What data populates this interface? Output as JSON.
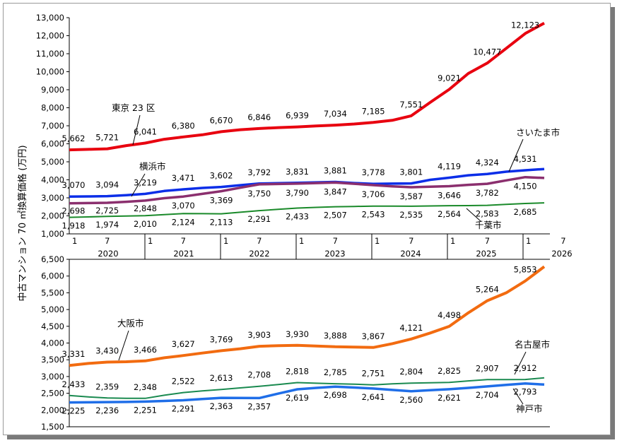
{
  "chart_data": [
    {
      "type": "line",
      "ylabel": "中古マンション 70 ㎡換算価格 (万円)",
      "ylim": [
        1000,
        13000
      ],
      "yticks": [
        "1,000",
        "2,000",
        "3,000",
        "4,000",
        "5,000",
        "6,000",
        "7,000",
        "8,000",
        "9,000",
        "10,000",
        "11,000",
        "12,000",
        "13,000"
      ],
      "x_axis": {
        "month_ticks": [
          "1",
          "7",
          "1",
          "7",
          "1",
          "7",
          "1",
          "7",
          "1",
          "7",
          "1",
          "7",
          "1",
          "7"
        ],
        "years": [
          "2020",
          "2021",
          "2022",
          "2023",
          "2024",
          "2025",
          "2026"
        ]
      },
      "series": [
        {
          "name": "東京 23 区",
          "color": "#e8000f",
          "labels": [
            "5,662",
            "5,721",
            "6,041",
            "6,380",
            "6,670",
            "6,846",
            "6,939",
            "7,034",
            "7,185",
            "7,551",
            "9,021",
            "10,477",
            "12,123"
          ],
          "points": [
            [
              0,
              5662
            ],
            [
              3,
              5690
            ],
            [
              6,
              5721
            ],
            [
              9,
              5900
            ],
            [
              12,
              6041
            ],
            [
              15,
              6250
            ],
            [
              18,
              6380
            ],
            [
              21,
              6500
            ],
            [
              24,
              6670
            ],
            [
              27,
              6780
            ],
            [
              30,
              6846
            ],
            [
              33,
              6900
            ],
            [
              36,
              6939
            ],
            [
              39,
              6990
            ],
            [
              42,
              7034
            ],
            [
              45,
              7100
            ],
            [
              48,
              7185
            ],
            [
              51,
              7300
            ],
            [
              54,
              7551
            ],
            [
              57,
              8300
            ],
            [
              60,
              9021
            ],
            [
              63,
              9900
            ],
            [
              66,
              10477
            ],
            [
              69,
              11300
            ],
            [
              72,
              12123
            ],
            [
              75,
              12700
            ]
          ]
        },
        {
          "name": "さいたま市",
          "color": "#0b2ee8",
          "labels": [
            "3,070",
            "3,094",
            "3,219",
            "3,471",
            "3,602",
            "3,792",
            "3,831",
            "3,881",
            "3,778",
            "3,801",
            "4,119",
            "4,324",
            "4,531"
          ],
          "points": [
            [
              0,
              3070
            ],
            [
              3,
              3080
            ],
            [
              6,
              3094
            ],
            [
              9,
              3150
            ],
            [
              12,
              3219
            ],
            [
              15,
              3380
            ],
            [
              18,
              3471
            ],
            [
              21,
              3550
            ],
            [
              24,
              3602
            ],
            [
              27,
              3700
            ],
            [
              30,
              3792
            ],
            [
              33,
              3810
            ],
            [
              36,
              3831
            ],
            [
              39,
              3860
            ],
            [
              42,
              3881
            ],
            [
              45,
              3820
            ],
            [
              48,
              3778
            ],
            [
              51,
              3790
            ],
            [
              54,
              3801
            ],
            [
              57,
              4000
            ],
            [
              60,
              4119
            ],
            [
              63,
              4250
            ],
            [
              66,
              4324
            ],
            [
              69,
              4450
            ],
            [
              72,
              4531
            ],
            [
              75,
              4600
            ]
          ]
        },
        {
          "name": "横浜市",
          "color": "#8b2f6e",
          "labels": [
            "2,698",
            "2,725",
            "2,848",
            "3,070",
            "3,369",
            "3,750",
            "3,790",
            "3,847",
            "3,706",
            "3,587",
            "3,646",
            "3,782",
            "4,150"
          ],
          "points": [
            [
              0,
              2698
            ],
            [
              3,
              2710
            ],
            [
              6,
              2725
            ],
            [
              9,
              2780
            ],
            [
              12,
              2848
            ],
            [
              15,
              2980
            ],
            [
              18,
              3070
            ],
            [
              21,
              3220
            ],
            [
              24,
              3369
            ],
            [
              27,
              3560
            ],
            [
              30,
              3750
            ],
            [
              33,
              3770
            ],
            [
              36,
              3790
            ],
            [
              39,
              3820
            ],
            [
              42,
              3847
            ],
            [
              45,
              3780
            ],
            [
              48,
              3706
            ],
            [
              51,
              3640
            ],
            [
              54,
              3587
            ],
            [
              57,
              3620
            ],
            [
              60,
              3646
            ],
            [
              63,
              3720
            ],
            [
              66,
              3782
            ],
            [
              69,
              3970
            ],
            [
              72,
              4150
            ],
            [
              75,
              4100
            ]
          ]
        },
        {
          "name": "千葉市",
          "color": "#1a8a2a",
          "labels": [
            "1,918",
            "1,974",
            "2,010",
            "2,124",
            "2,113",
            "2,291",
            "2,433",
            "2,507",
            "2,543",
            "2,535",
            "2,564",
            "2,583",
            "2,685"
          ],
          "points": [
            [
              0,
              1918
            ],
            [
              3,
              1940
            ],
            [
              6,
              1974
            ],
            [
              9,
              1990
            ],
            [
              12,
              2010
            ],
            [
              15,
              2070
            ],
            [
              18,
              2124
            ],
            [
              21,
              2120
            ],
            [
              24,
              2113
            ],
            [
              27,
              2200
            ],
            [
              30,
              2291
            ],
            [
              33,
              2360
            ],
            [
              36,
              2433
            ],
            [
              39,
              2470
            ],
            [
              42,
              2507
            ],
            [
              45,
              2520
            ],
            [
              48,
              2543
            ],
            [
              51,
              2540
            ],
            [
              54,
              2535
            ],
            [
              57,
              2550
            ],
            [
              60,
              2564
            ],
            [
              63,
              2570
            ],
            [
              66,
              2583
            ],
            [
              69,
              2640
            ],
            [
              72,
              2685
            ],
            [
              75,
              2720
            ]
          ]
        }
      ]
    },
    {
      "type": "line",
      "ylim": [
        1500,
        6500
      ],
      "yticks": [
        "1,500",
        "2,000",
        "2,500",
        "3,000",
        "3,500",
        "4,000",
        "4,500",
        "5,000",
        "5,500",
        "6,000",
        "6,500"
      ],
      "series": [
        {
          "name": "大阪市",
          "color": "#f26b10",
          "labels": [
            "3,331",
            "3,430",
            "3,466",
            "3,627",
            "3,769",
            "3,903",
            "3,930",
            "3,888",
            "3,867",
            "4,121",
            "4,498",
            "5,264",
            "5,853"
          ],
          "points": [
            [
              0,
              3331
            ],
            [
              3,
              3390
            ],
            [
              6,
              3430
            ],
            [
              9,
              3440
            ],
            [
              12,
              3466
            ],
            [
              15,
              3560
            ],
            [
              18,
              3627
            ],
            [
              21,
              3700
            ],
            [
              24,
              3769
            ],
            [
              27,
              3830
            ],
            [
              30,
              3903
            ],
            [
              33,
              3920
            ],
            [
              36,
              3930
            ],
            [
              39,
              3910
            ],
            [
              42,
              3888
            ],
            [
              45,
              3880
            ],
            [
              48,
              3867
            ],
            [
              51,
              3980
            ],
            [
              54,
              4121
            ],
            [
              57,
              4300
            ],
            [
              60,
              4498
            ],
            [
              63,
              4900
            ],
            [
              66,
              5264
            ],
            [
              69,
              5500
            ],
            [
              72,
              5853
            ],
            [
              75,
              6280
            ]
          ]
        },
        {
          "name": "名古屋市",
          "color": "#1a8a50",
          "labels": [
            "2,433",
            "2,359",
            "2,348",
            "2,522",
            "2,613",
            "2,708",
            "2,818",
            "2,785",
            "2,751",
            "2,804",
            "2,825",
            "2,907",
            "2,912"
          ],
          "points": [
            [
              0,
              2433
            ],
            [
              3,
              2390
            ],
            [
              6,
              2359
            ],
            [
              9,
              2350
            ],
            [
              12,
              2348
            ],
            [
              15,
              2440
            ],
            [
              18,
              2522
            ],
            [
              21,
              2570
            ],
            [
              24,
              2613
            ],
            [
              27,
              2660
            ],
            [
              30,
              2708
            ],
            [
              33,
              2760
            ],
            [
              36,
              2818
            ],
            [
              39,
              2800
            ],
            [
              42,
              2785
            ],
            [
              45,
              2770
            ],
            [
              48,
              2751
            ],
            [
              51,
              2780
            ],
            [
              54,
              2804
            ],
            [
              57,
              2815
            ],
            [
              60,
              2825
            ],
            [
              63,
              2870
            ],
            [
              66,
              2907
            ],
            [
              69,
              2910
            ],
            [
              72,
              2912
            ],
            [
              75,
              2960
            ]
          ]
        },
        {
          "name": "神戸市",
          "color": "#1f6ee8",
          "labels": [
            "2,225",
            "2,236",
            "2,251",
            "2,291",
            "2,363",
            "2,357",
            "2,619",
            "2,698",
            "2,641",
            "2,560",
            "2,621",
            "2,704",
            "2,793"
          ],
          "points": [
            [
              0,
              2225
            ],
            [
              3,
              2230
            ],
            [
              6,
              2236
            ],
            [
              9,
              2240
            ],
            [
              12,
              2251
            ],
            [
              15,
              2270
            ],
            [
              18,
              2291
            ],
            [
              21,
              2330
            ],
            [
              24,
              2363
            ],
            [
              27,
              2360
            ],
            [
              30,
              2357
            ],
            [
              33,
              2490
            ],
            [
              36,
              2619
            ],
            [
              39,
              2660
            ],
            [
              42,
              2698
            ],
            [
              45,
              2670
            ],
            [
              48,
              2641
            ],
            [
              51,
              2600
            ],
            [
              54,
              2560
            ],
            [
              57,
              2590
            ],
            [
              60,
              2621
            ],
            [
              63,
              2660
            ],
            [
              66,
              2704
            ],
            [
              69,
              2750
            ],
            [
              72,
              2793
            ],
            [
              75,
              2760
            ]
          ]
        }
      ]
    }
  ]
}
